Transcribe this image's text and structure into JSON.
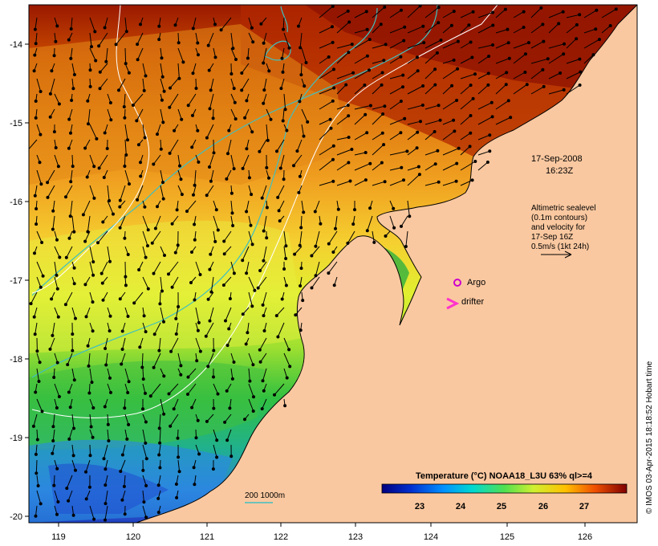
{
  "map": {
    "date_line": "17-Sep-2008",
    "time_line": "16:23Z",
    "lon_ticks": [
      "119",
      "120",
      "121",
      "122",
      "123",
      "124",
      "125",
      "126"
    ],
    "lat_ticks": [
      "-14",
      "-15",
      "-16",
      "-17",
      "-18",
      "-19",
      "-20"
    ],
    "altimetry_lines": [
      "Altimetric sealevel",
      "(0.1m contours)",
      "and velocity for",
      "17-Sep 16Z",
      "0.5m/s (1kt 24h)"
    ],
    "argo_label": "Argo",
    "drifter_label": "drifter",
    "depth_legend": "200  1000m",
    "colorbar_title": "Temperature (°C) NOAA18_L3U 63% ql>=4",
    "colorbar_ticks": [
      "23",
      "24",
      "25",
      "26",
      "27"
    ],
    "credit": "© IMOS 03-Apr-2015 18:18:52 Hobart time",
    "colors": {
      "land": "#fac8a0",
      "argo": "#cc00cc",
      "drifter": "#ff33cc",
      "isobath": "#40c0c0",
      "contour": "#ffffff"
    }
  }
}
